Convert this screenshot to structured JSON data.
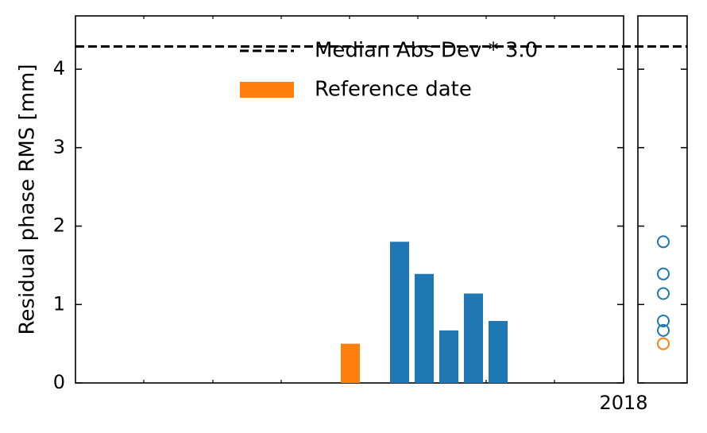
{
  "chart_data": {
    "type": "bar",
    "y_label": "Residual phase RMS [mm]",
    "categories": [
      null,
      null,
      null,
      null,
      null,
      null,
      null
    ],
    "values": [
      0.5,
      null,
      1.8,
      1.39,
      0.67,
      1.14,
      0.79
    ],
    "colors": [
      "#ff7f0e",
      null,
      "#1f77b4",
      "#1f77b4",
      "#1f77b4",
      "#1f77b4",
      "#1f77b4"
    ],
    "ylim": [
      0,
      4.68
    ],
    "yticks": [
      0,
      1,
      2,
      3,
      4
    ],
    "x_tick_labels": [
      "2018"
    ],
    "threshold": 4.29,
    "threshold_label": "Median Abs Dev * 3.0",
    "reference_label": "Reference date",
    "reference_color": "#ff7f0e",
    "threshold_color": "#000000"
  }
}
